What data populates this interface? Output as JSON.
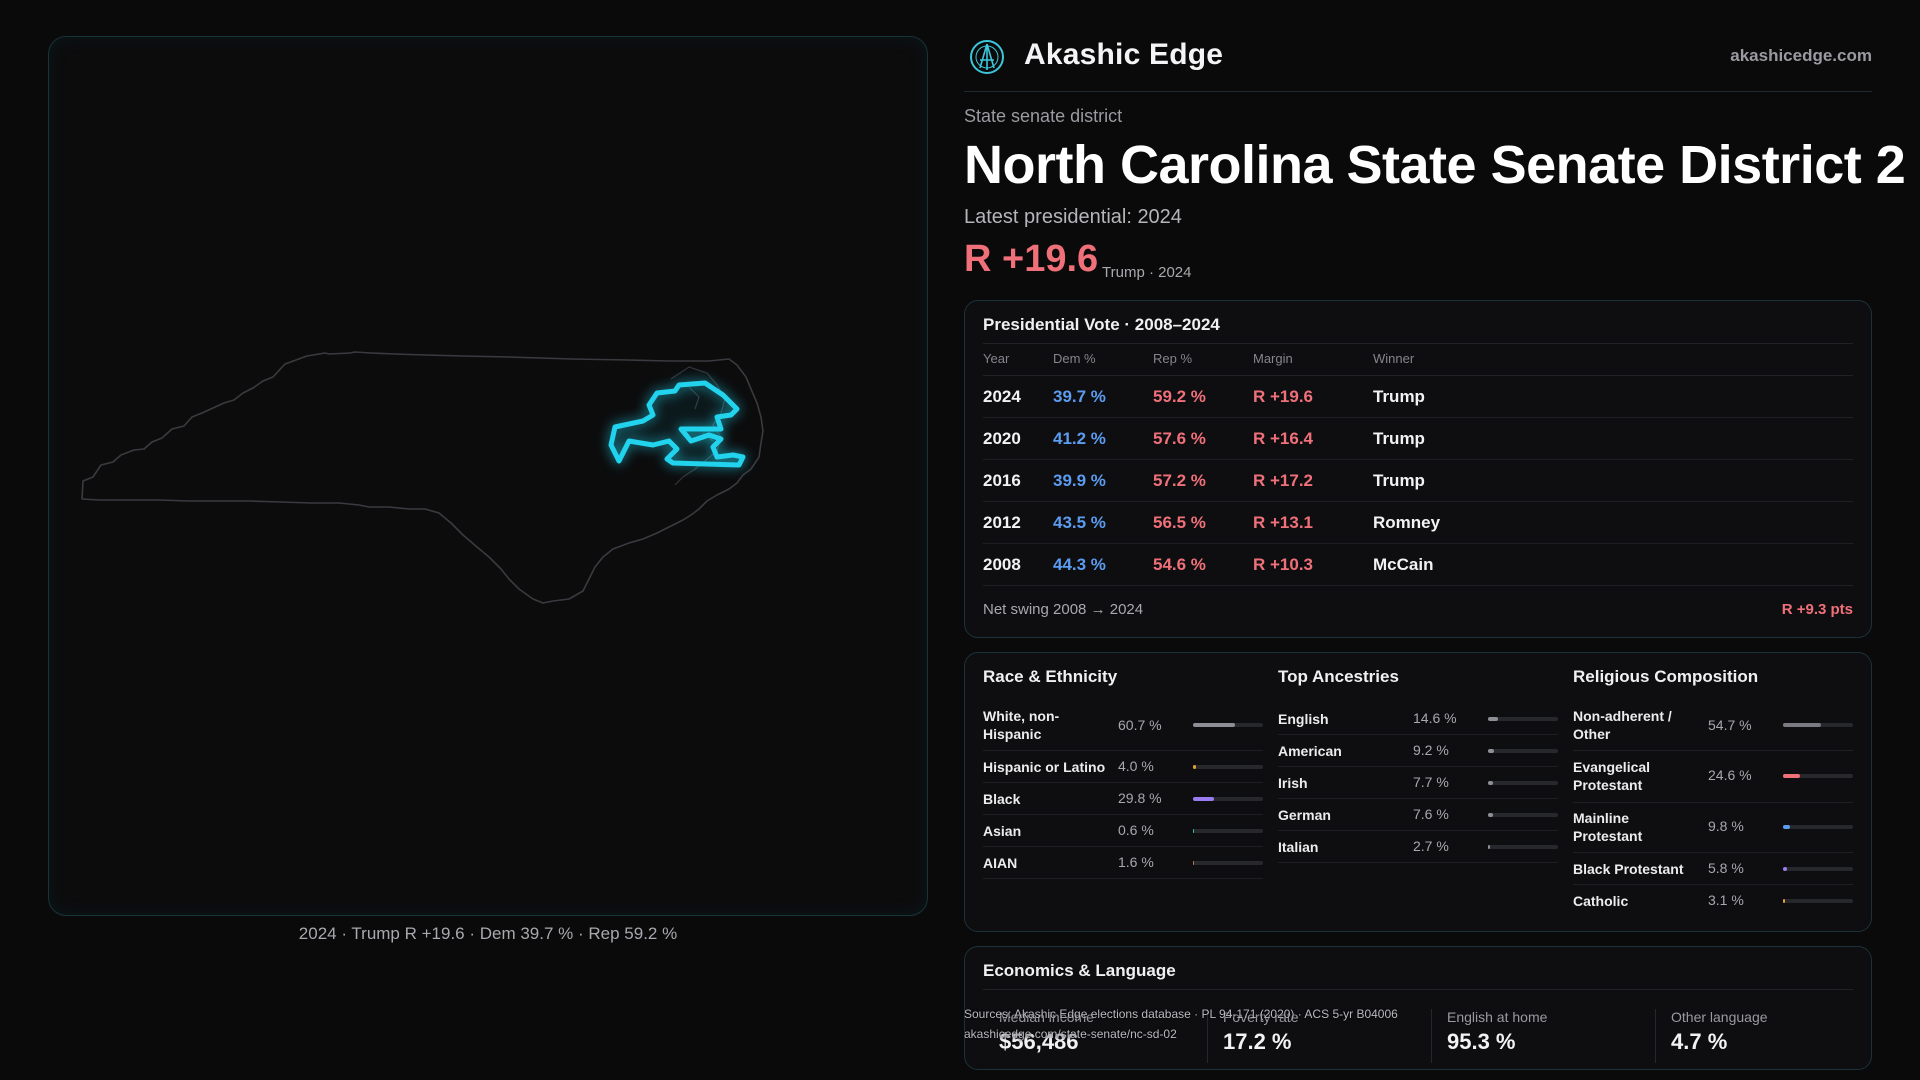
{
  "brand": {
    "name": "Akashic Edge",
    "url": "akashicedge.com",
    "logo_icon": "compass-logo-icon"
  },
  "header": {
    "kicker": "State senate district",
    "title": "North Carolina State Senate District 2",
    "latest": "Latest presidential: 2024",
    "margin": "R +19.6",
    "margin_sub": "Trump · 2024"
  },
  "map": {
    "caption": "2024 · Trump R +19.6 · Dem 39.7 % · Rep 59.2 %",
    "colors": {
      "state_outline": "#3a3a40",
      "district": "#22d3ee"
    }
  },
  "presidential": {
    "title": "Presidential Vote · 2008–2024",
    "columns": [
      "Year",
      "Dem %",
      "Rep %",
      "Margin",
      "Winner"
    ],
    "rows": [
      {
        "year": "2024",
        "dem": "39.7 %",
        "rep": "59.2 %",
        "margin": "R +19.6",
        "winner": "Trump"
      },
      {
        "year": "2020",
        "dem": "41.2 %",
        "rep": "57.6 %",
        "margin": "R +16.4",
        "winner": "Trump"
      },
      {
        "year": "2016",
        "dem": "39.9 %",
        "rep": "57.2 %",
        "margin": "R +17.2",
        "winner": "Trump"
      },
      {
        "year": "2012",
        "dem": "43.5 %",
        "rep": "56.5 %",
        "margin": "R +13.1",
        "winner": "Romney"
      },
      {
        "year": "2008",
        "dem": "44.3 %",
        "rep": "54.6 %",
        "margin": "R +10.3",
        "winner": "McCain"
      }
    ],
    "swing_label": "Net swing 2008 → 2024",
    "swing_value": "R +9.3 pts",
    "colors": {
      "dem": "#5b9cf0",
      "rep": "#f0707a"
    }
  },
  "race": {
    "title": "Race & Ethnicity",
    "items": [
      {
        "label": "White, non-Hispanic",
        "value": "60.7 %",
        "pct": 60.7,
        "color": "#8e8e96"
      },
      {
        "label": "Hispanic or Latino",
        "value": "4.0 %",
        "pct": 4.0,
        "color": "#e0a030"
      },
      {
        "label": "Black",
        "value": "29.8 %",
        "pct": 29.8,
        "color": "#9b7cf0"
      },
      {
        "label": "Asian",
        "value": "0.6 %",
        "pct": 0.6,
        "color": "#2fbf9a"
      },
      {
        "label": "AIAN",
        "value": "1.6 %",
        "pct": 1.6,
        "color": "#d06a3a"
      }
    ]
  },
  "ancestry": {
    "title": "Top Ancestries",
    "items": [
      {
        "label": "English",
        "value": "14.6 %",
        "pct": 14.6,
        "color": "#8e8e96"
      },
      {
        "label": "American",
        "value": "9.2 %",
        "pct": 9.2,
        "color": "#8e8e96"
      },
      {
        "label": "Irish",
        "value": "7.7 %",
        "pct": 7.7,
        "color": "#8e8e96"
      },
      {
        "label": "German",
        "value": "7.6 %",
        "pct": 7.6,
        "color": "#8e8e96"
      },
      {
        "label": "Italian",
        "value": "2.7 %",
        "pct": 2.7,
        "color": "#8e8e96"
      }
    ]
  },
  "religion": {
    "title": "Religious Composition",
    "items": [
      {
        "label": "Non-adherent / Other",
        "value": "54.7 %",
        "pct": 54.7,
        "color": "#7a7a82"
      },
      {
        "label": "Evangelical Protestant",
        "value": "24.6 %",
        "pct": 24.6,
        "color": "#f0707a"
      },
      {
        "label": "Mainline Protestant",
        "value": "9.8 %",
        "pct": 9.8,
        "color": "#5b9cf0"
      },
      {
        "label": "Black Protestant",
        "value": "5.8 %",
        "pct": 5.8,
        "color": "#9b7cf0"
      },
      {
        "label": "Catholic",
        "value": "3.1 %",
        "pct": 3.1,
        "color": "#e0a030"
      }
    ]
  },
  "economics": {
    "title": "Economics & Language",
    "stats": [
      {
        "label": "Median income",
        "value": "$56,486"
      },
      {
        "label": "Poverty rate",
        "value": "17.2 %"
      },
      {
        "label": "English at home",
        "value": "95.3 %"
      },
      {
        "label": "Other language",
        "value": "4.7 %"
      }
    ]
  },
  "source": {
    "line1": "Sources: Akashic Edge elections database · PL 94-171 (2020) · ACS 5-yr B04006",
    "line2": "akashicedge.com/state-senate/nc-sd-02"
  }
}
